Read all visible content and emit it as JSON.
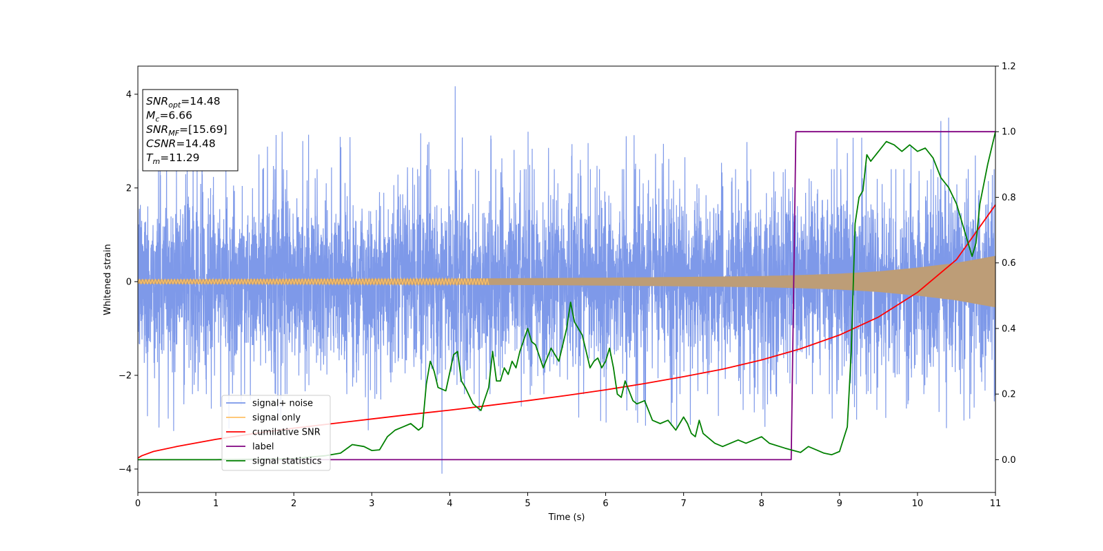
{
  "chart_data": {
    "type": "line",
    "title": "",
    "xlabel": "Time (s)",
    "ylabel": "Whitened strain",
    "xlim": [
      0,
      11
    ],
    "ylim": [
      -4.5,
      4.6
    ],
    "y2lim": [
      -0.1,
      1.2
    ],
    "x_ticks": [
      "0",
      "1",
      "2",
      "3",
      "4",
      "5",
      "6",
      "7",
      "8",
      "9",
      "10",
      "11"
    ],
    "y_ticks": [
      "−4",
      "−2",
      "0",
      "2",
      "4"
    ],
    "y2_ticks": [
      "0.0",
      "0.2",
      "0.4",
      "0.6",
      "0.8",
      "1.0",
      "1.2"
    ],
    "grid": false,
    "legend_location": "lower-left",
    "annotation": {
      "lines": [
        {
          "sym": "SNR",
          "sub": "opt",
          "value": "=14.48"
        },
        {
          "sym": "M",
          "sub": "c",
          "value": "=6.66"
        },
        {
          "sym": "SNR",
          "sub": "MF",
          "value": "=[15.69]"
        },
        {
          "sym": "CSNR",
          "sub": "",
          "value": "=14.48"
        },
        {
          "sym": "T",
          "sub": "m",
          "value": "=11.29"
        }
      ]
    },
    "series": [
      {
        "name": "signal+ noise",
        "axis": "left",
        "color": "#7794e8",
        "kind": "noise",
        "envelope_abs": 2.4,
        "peaks": [
          [
            3.9,
            -4.1
          ],
          [
            4.07,
            4.17
          ],
          [
            10.4,
            3.5
          ],
          [
            10.3,
            3.43
          ],
          [
            1.85,
            3.2
          ]
        ]
      },
      {
        "name": "signal only",
        "axis": "left",
        "color": "#ffc165",
        "fill_color": "#bd9d77",
        "kind": "chirp_envelope",
        "x": [
          0,
          1,
          2,
          3,
          4,
          5,
          6,
          7,
          8,
          8.5,
          9,
          9.5,
          10,
          10.5,
          11
        ],
        "amplitude": [
          0.045,
          0.05,
          0.055,
          0.06,
          0.065,
          0.075,
          0.085,
          0.1,
          0.12,
          0.14,
          0.17,
          0.22,
          0.3,
          0.4,
          0.55
        ]
      },
      {
        "name": "cumilative SNR",
        "axis": "right",
        "color": "#ff0000",
        "x": [
          0,
          0.05,
          0.2,
          0.5,
          1,
          1.5,
          2,
          2.5,
          3,
          3.5,
          4,
          4.5,
          5,
          5.5,
          6,
          6.5,
          7,
          7.5,
          8,
          8.5,
          9,
          9.5,
          10,
          10.5,
          11
        ],
        "y": [
          0.005,
          0.012,
          0.025,
          0.04,
          0.062,
          0.08,
          0.096,
          0.11,
          0.124,
          0.138,
          0.151,
          0.165,
          0.18,
          0.196,
          0.213,
          0.232,
          0.253,
          0.276,
          0.304,
          0.338,
          0.38,
          0.435,
          0.51,
          0.61,
          0.777
        ]
      },
      {
        "name": "label",
        "axis": "right",
        "color": "#800080",
        "x": [
          0,
          8.38,
          8.44,
          11
        ],
        "y": [
          0,
          0,
          1,
          1
        ]
      },
      {
        "name": "signal statistics",
        "axis": "right",
        "color": "#008000",
        "x": [
          0,
          1,
          2,
          2.2,
          2.4,
          2.6,
          2.75,
          2.9,
          3.0,
          3.1,
          3.2,
          3.3,
          3.4,
          3.5,
          3.6,
          3.65,
          3.7,
          3.75,
          3.8,
          3.85,
          3.95,
          4.05,
          4.1,
          4.15,
          4.2,
          4.3,
          4.4,
          4.5,
          4.55,
          4.6,
          4.65,
          4.7,
          4.75,
          4.8,
          4.85,
          4.9,
          5.0,
          5.05,
          5.1,
          5.2,
          5.3,
          5.35,
          5.4,
          5.5,
          5.55,
          5.6,
          5.7,
          5.75,
          5.8,
          5.85,
          5.9,
          5.95,
          6.0,
          6.05,
          6.1,
          6.15,
          6.2,
          6.25,
          6.3,
          6.35,
          6.4,
          6.5,
          6.6,
          6.7,
          6.8,
          6.9,
          7.0,
          7.05,
          7.1,
          7.15,
          7.2,
          7.25,
          7.3,
          7.4,
          7.5,
          7.6,
          7.7,
          7.8,
          7.9,
          8.0,
          8.1,
          8.3,
          8.5,
          8.6,
          8.7,
          8.8,
          8.9,
          9.0,
          9.1,
          9.15,
          9.2,
          9.25,
          9.3,
          9.35,
          9.4,
          9.5,
          9.6,
          9.7,
          9.8,
          9.9,
          10.0,
          10.1,
          10.2,
          10.3,
          10.4,
          10.5,
          10.6,
          10.7,
          10.75,
          10.8,
          10.9,
          11.0
        ],
        "y": [
          0,
          0,
          0.003,
          0.008,
          0.012,
          0.02,
          0.046,
          0.04,
          0.028,
          0.03,
          0.07,
          0.09,
          0.1,
          0.11,
          0.09,
          0.1,
          0.23,
          0.3,
          0.27,
          0.22,
          0.21,
          0.32,
          0.33,
          0.24,
          0.22,
          0.17,
          0.15,
          0.22,
          0.33,
          0.24,
          0.24,
          0.28,
          0.26,
          0.3,
          0.28,
          0.33,
          0.4,
          0.36,
          0.35,
          0.28,
          0.34,
          0.32,
          0.3,
          0.4,
          0.48,
          0.42,
          0.38,
          0.33,
          0.28,
          0.3,
          0.31,
          0.28,
          0.3,
          0.34,
          0.28,
          0.2,
          0.19,
          0.24,
          0.21,
          0.18,
          0.17,
          0.18,
          0.12,
          0.11,
          0.12,
          0.09,
          0.13,
          0.11,
          0.08,
          0.07,
          0.12,
          0.08,
          0.07,
          0.05,
          0.04,
          0.05,
          0.06,
          0.05,
          0.06,
          0.07,
          0.05,
          0.035,
          0.022,
          0.04,
          0.03,
          0.02,
          0.015,
          0.025,
          0.1,
          0.33,
          0.72,
          0.8,
          0.82,
          0.93,
          0.91,
          0.94,
          0.97,
          0.96,
          0.94,
          0.96,
          0.94,
          0.95,
          0.92,
          0.86,
          0.83,
          0.78,
          0.7,
          0.62,
          0.66,
          0.78,
          0.9,
          1.0
        ]
      }
    ]
  }
}
